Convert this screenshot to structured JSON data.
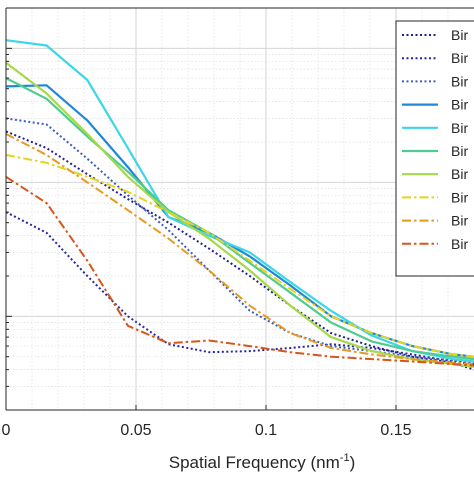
{
  "chart_data": {
    "type": "line",
    "xlabel": "Spatial Frequency (nm",
    "xlabel_sup": "-1",
    "xlabel_suffix": ")",
    "xlim": [
      0,
      0.18
    ],
    "xticks": [
      0,
      0.05,
      0.1,
      0.15
    ],
    "xtick_labels": [
      "0",
      "0.05",
      "0.1",
      "0.15"
    ],
    "y_scale": "log",
    "ylim": [
      0.02,
      20
    ],
    "grid": true,
    "legend_position": "top-right",
    "legend_label": "Bir",
    "x": [
      0,
      0.015625,
      0.03125,
      0.046875,
      0.0625,
      0.078125,
      0.09375,
      0.109375,
      0.125,
      0.140625,
      0.15625,
      0.171875,
      0.18
    ],
    "series": [
      {
        "color": "#1f1f8f",
        "dash": "dotted",
        "values": [
          2.4,
          1.8,
          1.15,
          0.75,
          0.5,
          0.32,
          0.2,
          0.12,
          0.075,
          0.06,
          0.05,
          0.045,
          0.04
        ]
      },
      {
        "color": "#26269e",
        "dash": "dotted",
        "values": [
          0.6,
          0.42,
          0.2,
          0.1,
          0.062,
          0.054,
          0.055,
          0.058,
          0.062,
          0.058,
          0.052,
          0.046,
          0.044
        ]
      },
      {
        "color": "#3d5cbf",
        "dash": "dotted",
        "values": [
          3.0,
          2.7,
          1.5,
          0.8,
          0.44,
          0.22,
          0.11,
          0.075,
          0.06,
          0.055,
          0.05,
          0.047,
          0.045
        ]
      },
      {
        "color": "#1e88d8",
        "dash": "solid",
        "values": [
          5.2,
          5.3,
          2.9,
          1.3,
          0.55,
          0.42,
          0.28,
          0.17,
          0.1,
          0.075,
          0.06,
          0.052,
          0.05
        ]
      },
      {
        "color": "#3cd6e8",
        "dash": "solid",
        "values": [
          11.5,
          10.5,
          5.8,
          1.8,
          0.55,
          0.4,
          0.3,
          0.18,
          0.11,
          0.072,
          0.055,
          0.048,
          0.046
        ]
      },
      {
        "color": "#4fcc90",
        "dash": "solid",
        "values": [
          6.0,
          4.2,
          2.2,
          1.2,
          0.62,
          0.42,
          0.25,
          0.15,
          0.09,
          0.065,
          0.055,
          0.05,
          0.048
        ]
      },
      {
        "color": "#a6d94a",
        "dash": "solid",
        "values": [
          7.8,
          4.6,
          2.3,
          1.1,
          0.6,
          0.38,
          0.22,
          0.12,
          0.07,
          0.055,
          0.048,
          0.044,
          0.042
        ]
      },
      {
        "color": "#e6d41a",
        "dash": "dashdot",
        "values": [
          1.6,
          1.4,
          1.1,
          0.85,
          0.6,
          0.42,
          0.26,
          0.16,
          0.1,
          0.075,
          0.06,
          0.052,
          0.05
        ]
      },
      {
        "color": "#e69a1e",
        "dash": "dashdot",
        "values": [
          2.3,
          1.6,
          1.0,
          0.62,
          0.38,
          0.22,
          0.12,
          0.075,
          0.058,
          0.052,
          0.048,
          0.045,
          0.044
        ]
      },
      {
        "color": "#d9541a",
        "dash": "dashdot",
        "values": [
          1.1,
          0.7,
          0.26,
          0.085,
          0.063,
          0.066,
          0.06,
          0.054,
          0.05,
          0.048,
          0.046,
          0.044,
          0.043
        ]
      }
    ]
  }
}
